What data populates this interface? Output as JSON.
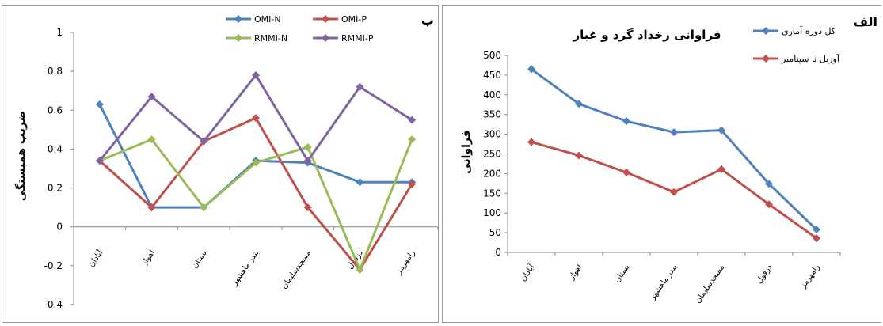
{
  "chart_data": [
    {
      "type": "line",
      "panel_tag": "ب",
      "title": "",
      "xlabel": "",
      "ylabel": "ضریب همبستگی",
      "ylim": [
        -0.4,
        1
      ],
      "yticks": [
        "1",
        "0.8",
        "0.6",
        "0.4",
        "0.2",
        "0",
        "-0.2",
        "-0.4"
      ],
      "categories": [
        "آبادان",
        "اهواز",
        "بستان",
        "بندر ماهشهر",
        "مسجدسلیمان",
        "دزفول",
        "رامهرمز"
      ],
      "legend_position": "top",
      "grid": false,
      "series": [
        {
          "name": "OMI-N",
          "color": "#4f81bd",
          "values": [
            0.63,
            0.1,
            0.1,
            0.34,
            0.33,
            0.23,
            0.23
          ]
        },
        {
          "name": "OMI-P",
          "color": "#c0504d",
          "values": [
            0.34,
            0.1,
            0.44,
            0.56,
            0.1,
            -0.22,
            0.22
          ]
        },
        {
          "name": "RMMI-N",
          "color": "#9bbb59",
          "values": [
            0.34,
            0.45,
            0.1,
            0.33,
            0.41,
            -0.22,
            0.45
          ]
        },
        {
          "name": "RMMI-P",
          "color": "#8064a2",
          "values": [
            0.34,
            0.67,
            0.44,
            0.78,
            0.34,
            0.72,
            0.55
          ]
        }
      ]
    },
    {
      "type": "line",
      "panel_tag": "الف",
      "title": "فراوانی رخداد گرد و غبار",
      "xlabel": "",
      "ylabel": "فراوانی",
      "ylim": [
        0,
        500
      ],
      "yticks": [
        "500",
        "450",
        "400",
        "350",
        "300",
        "250",
        "200",
        "150",
        "100",
        "50",
        "0"
      ],
      "categories": [
        "آبادان",
        "اهواز",
        "بستان",
        "بندر ماهشهر",
        "مسجدسلیمان",
        "دزفول",
        "رامهرمز"
      ],
      "legend_position": "top-right",
      "grid": false,
      "series": [
        {
          "name": "کل دوره آماری",
          "color": "#4f81bd",
          "values": [
            465,
            377,
            333,
            305,
            310,
            174,
            58
          ]
        },
        {
          "name": "آوریل تا سپتامبر",
          "color": "#c0504d",
          "values": [
            280,
            246,
            203,
            153,
            211,
            122,
            36
          ]
        }
      ]
    }
  ]
}
